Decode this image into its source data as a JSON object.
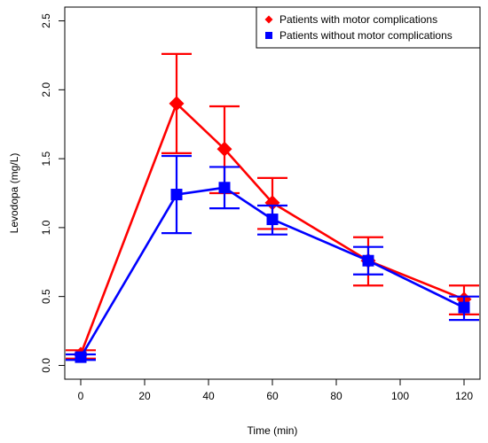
{
  "chart_data": {
    "type": "line",
    "title": "",
    "xlabel": "Time (min)",
    "ylabel": "Levodopa (mg/L)",
    "xlim": [
      -5,
      125
    ],
    "ylim": [
      -0.1,
      2.6
    ],
    "xticks": [
      0,
      20,
      40,
      60,
      80,
      100,
      120
    ],
    "yticks": [
      0.0,
      0.5,
      1.0,
      1.5,
      2.0,
      2.5
    ],
    "ytick_labels": [
      "0.0",
      "0.5",
      "1.0",
      "1.5",
      "2.0",
      "2.5"
    ],
    "legend_position": "top-right",
    "series": [
      {
        "name": "Patients with motor complications",
        "color": "#ff0000",
        "marker": "diamond",
        "x": [
          0,
          30,
          45,
          60,
          90,
          120
        ],
        "y": [
          0.08,
          1.9,
          1.57,
          1.18,
          0.76,
          0.48
        ],
        "err_low": [
          0.05,
          1.54,
          1.25,
          0.99,
          0.58,
          0.37
        ],
        "err_high": [
          0.11,
          2.26,
          1.88,
          1.36,
          0.93,
          0.58
        ]
      },
      {
        "name": "Patients without motor complications",
        "color": "#0000ff",
        "marker": "square",
        "x": [
          0,
          30,
          45,
          60,
          90,
          120
        ],
        "y": [
          0.06,
          1.24,
          1.29,
          1.06,
          0.76,
          0.42
        ],
        "err_low": [
          0.04,
          0.96,
          1.14,
          0.95,
          0.66,
          0.33
        ],
        "err_high": [
          0.08,
          1.52,
          1.44,
          1.16,
          0.86,
          0.5
        ]
      }
    ]
  }
}
